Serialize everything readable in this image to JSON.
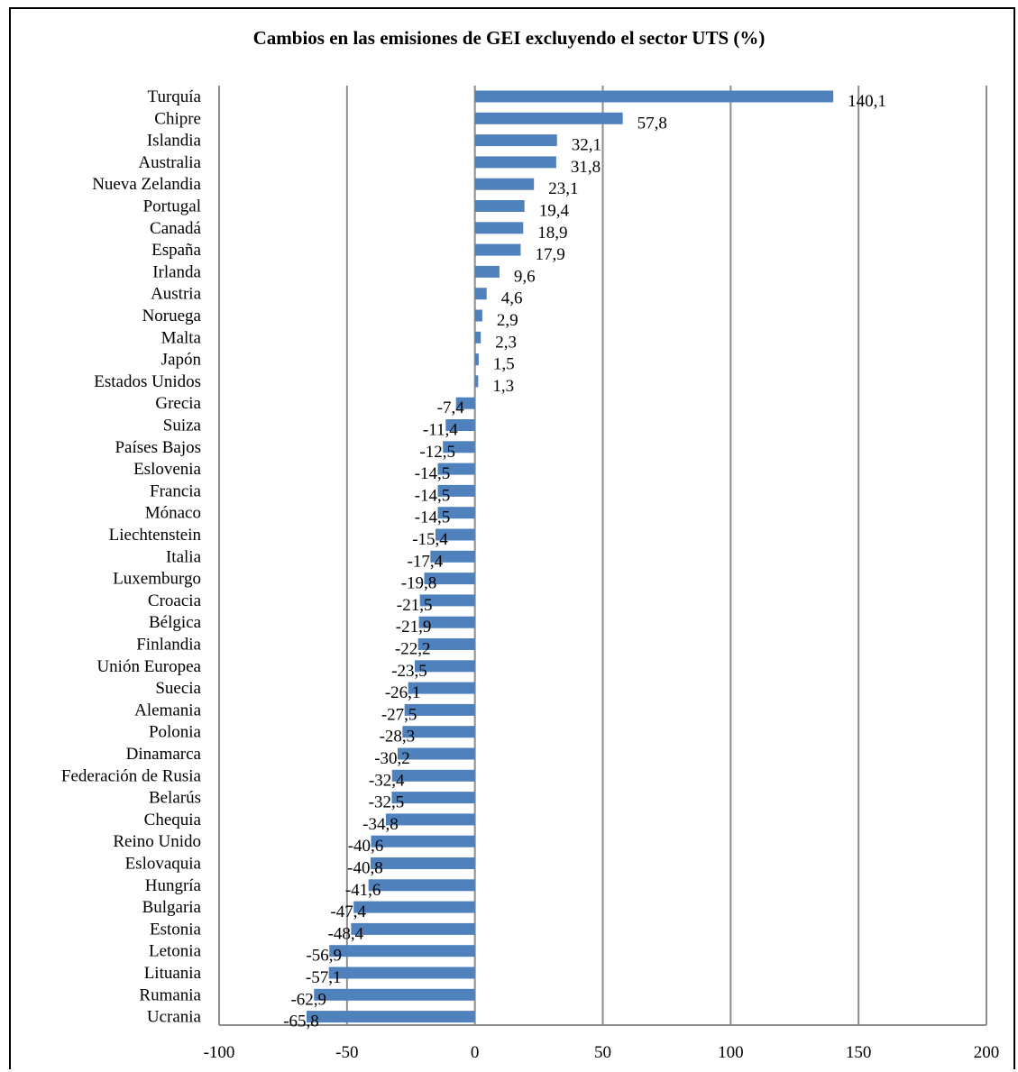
{
  "chart_data": {
    "type": "bar",
    "orientation": "horizontal",
    "title": "Cambios en las emisiones de GEI excluyendo el sector UTS (%)",
    "xlabel": "",
    "ylabel": "",
    "xlim": [
      -100,
      200
    ],
    "xticks": [
      "-100",
      "-50",
      "0",
      "50",
      "100",
      "150",
      "200"
    ],
    "grid": "vertical",
    "bar_color": "#4F81BD",
    "categories": [
      "Turquía",
      "Chipre",
      "Islandia",
      "Australia",
      "Nueva Zelandia",
      "Portugal",
      "Canadá",
      "España",
      "Irlanda",
      "Austria",
      "Noruega",
      "Malta",
      "Japón",
      "Estados Unidos",
      "Grecia",
      "Suiza",
      "Países Bajos",
      "Eslovenia",
      "Francia",
      "Mónaco",
      "Liechtenstein",
      "Italia",
      "Luxemburgo",
      "Croacia",
      "Bélgica",
      "Finlandia",
      "Unión Europea",
      "Suecia",
      "Alemania",
      "Polonia",
      "Dinamarca",
      "Federación de Rusia",
      "Belarús",
      "Chequia",
      "Reino Unido",
      "Eslovaquia",
      "Hungría",
      "Bulgaria",
      "Estonia",
      "Letonia",
      "Lituania",
      "Rumania",
      "Ucrania"
    ],
    "values": [
      140.1,
      57.8,
      32.1,
      31.8,
      23.1,
      19.4,
      18.9,
      17.9,
      9.6,
      4.6,
      2.9,
      2.3,
      1.5,
      1.3,
      -7.4,
      -11.4,
      -12.5,
      -14.5,
      -14.5,
      -14.5,
      -15.4,
      -17.4,
      -19.8,
      -21.5,
      -21.9,
      -22.2,
      -23.5,
      -26.1,
      -27.5,
      -28.3,
      -30.2,
      -32.4,
      -32.5,
      -34.8,
      -40.6,
      -40.8,
      -41.6,
      -47.4,
      -48.4,
      -56.9,
      -57.1,
      -62.9,
      -65.8
    ],
    "data_labels": [
      "140,1",
      "57,8",
      "32,1",
      "31,8",
      "23,1",
      "19,4",
      "18,9",
      "17,9",
      "9,6",
      "4,6",
      "2,9",
      "2,3",
      "1,5",
      "1,3",
      "-7,4",
      "-11,4",
      "-12,5",
      "-14,5",
      "-14,5",
      "-14,5",
      "-15,4",
      "-17,4",
      "-19,8",
      "-21,5",
      "-21,9",
      "-22,2",
      "-23,5",
      "-26,1",
      "-27,5",
      "-28,3",
      "-30,2",
      "-32,4",
      "-32,5",
      "-34,8",
      "-40,6",
      "-40,8",
      "-41,6",
      "-47,4",
      "-48,4",
      "-56,9",
      "-57,1",
      "-62,9",
      "-65,8"
    ]
  }
}
